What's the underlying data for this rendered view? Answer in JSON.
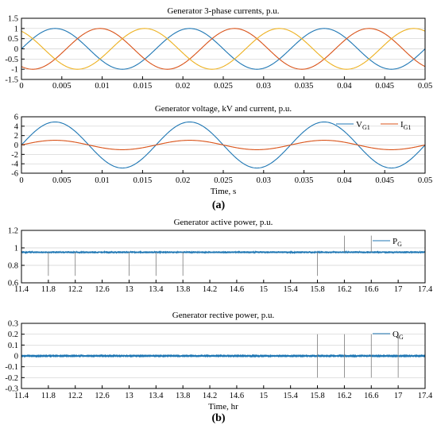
{
  "panel_labels": {
    "a": "(a)",
    "b": "(b)"
  },
  "chart_data": [
    {
      "type": "line",
      "title": "Generator 3-phase currents, p.u.",
      "xlabel": "",
      "ylabel": "",
      "xlim": [
        0,
        0.05
      ],
      "ylim": [
        -1.5,
        1.5
      ],
      "xticks": [
        "0",
        "0.005",
        "0.01",
        "0.015",
        "0.02",
        "0.025",
        "0.03",
        "0.035",
        "0.04",
        "0.045",
        "0.05"
      ],
      "yticks": [
        "-1.5",
        "-1",
        "-0.5",
        "0",
        "0.5",
        "1",
        "1.5"
      ],
      "grid": "horizontal",
      "series": [
        {
          "amplitude": 1.0,
          "frequency_hz": 60,
          "phase_deg": 0,
          "color": "#1f77b4"
        },
        {
          "amplitude": 1.0,
          "frequency_hz": 60,
          "phase_deg": -120,
          "color": "#d95319"
        },
        {
          "amplitude": 1.0,
          "frequency_hz": 60,
          "phase_deg": 120,
          "color": "#edb120"
        }
      ]
    },
    {
      "type": "line",
      "title": "Generator voltage, kV and current, p.u.",
      "xlabel": "Time, s",
      "ylabel": "",
      "xlim": [
        0,
        0.05
      ],
      "ylim": [
        -6,
        6
      ],
      "xticks": [
        "0",
        "0.005",
        "0.01",
        "0.015",
        "0.02",
        "0.025",
        "0.03",
        "0.035",
        "0.04",
        "0.045",
        "0.05"
      ],
      "yticks": [
        "-6",
        "-4",
        "-2",
        "0",
        "2",
        "4",
        "6"
      ],
      "grid": "horizontal",
      "legend": "top-right",
      "series": [
        {
          "name": "V",
          "name_sub": "G1",
          "amplitude": 4.9,
          "frequency_hz": 60,
          "phase_deg": 0,
          "color": "#1f77b4"
        },
        {
          "name": "I",
          "name_sub": "G1",
          "amplitude": 1.0,
          "frequency_hz": 60,
          "phase_deg": 0,
          "color": "#d95319"
        }
      ]
    },
    {
      "type": "line",
      "title": "Generator active power, p.u.",
      "xlabel": "",
      "ylabel": "",
      "xlim": [
        11.4,
        17.4
      ],
      "ylim": [
        0.6,
        1.2
      ],
      "xticks": [
        "11.4",
        "11.8",
        "12.2",
        "12.6",
        "13",
        "13.4",
        "13.8",
        "14.2",
        "14.6",
        "15",
        "15.4",
        "15.8",
        "16.2",
        "16.6",
        "17",
        "17.4"
      ],
      "yticks": [
        "0.6",
        "0.8",
        "1",
        "1.2"
      ],
      "grid": "horizontal",
      "legend": "top-right",
      "series": [
        {
          "name": "P",
          "name_sub": "G",
          "mean": 0.95,
          "noise": 0.012,
          "color": "#1f77b4"
        }
      ],
      "spikes": [
        {
          "x": 11.8,
          "y": 0.68
        },
        {
          "x": 12.2,
          "y": 0.68
        },
        {
          "x": 13,
          "y": 0.68
        },
        {
          "x": 13.4,
          "y": 0.68
        },
        {
          "x": 13.8,
          "y": 0.68
        },
        {
          "x": 15.8,
          "y": 0.68
        },
        {
          "x": 16.2,
          "y": 1.14
        },
        {
          "x": 16.6,
          "y": 1.14
        }
      ]
    },
    {
      "type": "line",
      "title": "Generator rective power, p.u.",
      "xlabel": "Time, hr",
      "ylabel": "",
      "xlim": [
        11.4,
        17.4
      ],
      "ylim": [
        -0.3,
        0.3
      ],
      "xticks": [
        "11.4",
        "11.8",
        "12.2",
        "12.6",
        "13",
        "13.4",
        "13.8",
        "14.2",
        "14.6",
        "15",
        "15.4",
        "15.8",
        "16.2",
        "16.6",
        "17",
        "17.4"
      ],
      "yticks": [
        "-0.3",
        "-0.2",
        "-0.1",
        "0",
        "0.1",
        "0.2",
        "0.3"
      ],
      "grid": "horizontal",
      "legend": "top-right",
      "series": [
        {
          "name": "Q",
          "name_sub": "G",
          "mean": 0.0,
          "noise": 0.013,
          "color": "#1f77b4"
        }
      ],
      "spikes": [
        {
          "x": 15.8,
          "y0": 0.2,
          "y1": -0.2
        },
        {
          "x": 16.2,
          "y0": 0.2,
          "y1": -0.2
        },
        {
          "x": 16.6,
          "y0": 0.2,
          "y1": -0.2
        },
        {
          "x": 17,
          "y0": 0.2,
          "y1": -0.2
        }
      ]
    }
  ]
}
